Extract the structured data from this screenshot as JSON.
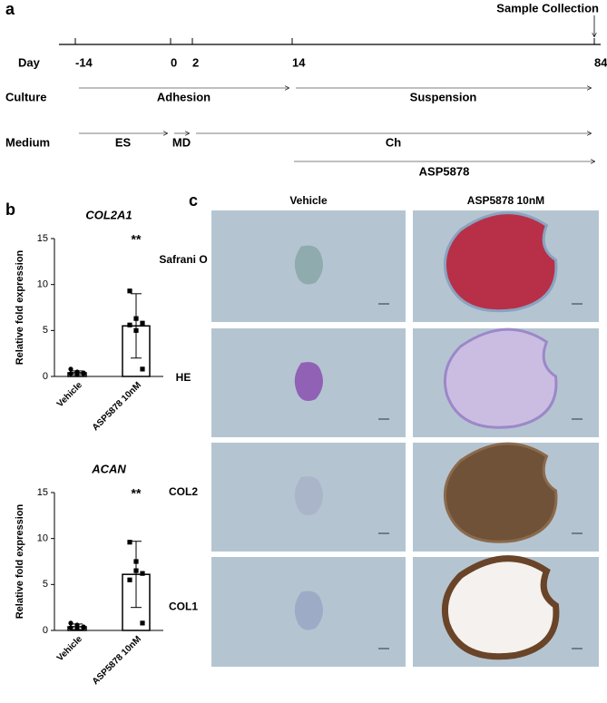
{
  "panel_labels": [
    "a",
    "b",
    "c"
  ],
  "timeline": {
    "sample_collection": "Sample Collection",
    "day_label": "Day",
    "days": [
      -14,
      0,
      2,
      14,
      84
    ],
    "rows": [
      {
        "label": "Culture",
        "arrows": [
          {
            "text": "Adhesion",
            "from": -14,
            "to": 14
          },
          {
            "text": "Suspension",
            "from": 14,
            "to": 84
          }
        ]
      },
      {
        "label": "Medium",
        "arrows": [
          {
            "text": "ES",
            "from": -14,
            "to": 0
          },
          {
            "text": "MD",
            "from": 0,
            "to": 2
          },
          {
            "text": "Ch",
            "from": 2,
            "to": 84
          }
        ]
      }
    ],
    "treatment": {
      "text": "ASP5878",
      "from": 14,
      "to": 84
    }
  },
  "chart_data": [
    {
      "type": "bar",
      "title": "COL2A1",
      "ylabel": "Relative fold expression",
      "categories": [
        "Vehicle",
        "ASP5878 10nM"
      ],
      "values": [
        0.4,
        5.5
      ],
      "errors": [
        0.2,
        3.5
      ],
      "points": [
        [
          0.8,
          0.5,
          0.4,
          0.3,
          0.2,
          0.3
        ],
        [
          9.3,
          6.3,
          5.8,
          5.6,
          5.0,
          0.8
        ]
      ],
      "annotation": "**",
      "ylim": [
        0,
        15
      ],
      "yticks": [
        0,
        5,
        10,
        15
      ]
    },
    {
      "type": "bar",
      "title": "ACAN",
      "ylabel": "Relative fold expression",
      "categories": [
        "Vehicle",
        "ASP5878 10nM"
      ],
      "values": [
        0.4,
        6.1
      ],
      "errors": [
        0.3,
        3.6
      ],
      "points": [
        [
          0.8,
          0.6,
          0.4,
          0.3,
          0.2,
          0.3
        ],
        [
          9.6,
          7.5,
          6.2,
          5.5,
          6.5,
          0.8
        ]
      ],
      "annotation": "**",
      "ylim": [
        0,
        15
      ],
      "yticks": [
        0,
        5,
        10,
        15
      ]
    }
  ],
  "histology": {
    "columns": [
      "Vehicle",
      "ASP5878 10nM"
    ],
    "rows": [
      "Safrani O",
      "HE",
      "COL2",
      "COL1"
    ]
  }
}
